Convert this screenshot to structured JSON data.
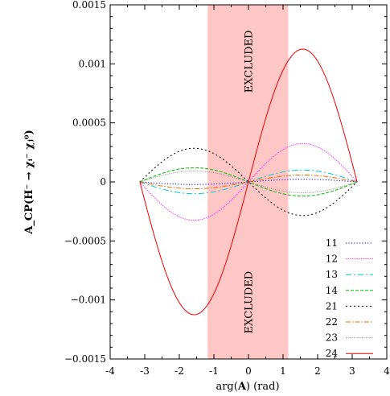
{
  "chart_data": {
    "type": "line",
    "title": "",
    "xlabel_prefix": "arg(",
    "xlabel_bold": "A",
    "xlabel_suffix": ") (rad)",
    "ylabel": "A_CP(H⁻ → χᵢ⁻ χⱼ⁰)",
    "xlim": [
      -4,
      4
    ],
    "ylim": [
      -0.0015,
      0.0015
    ],
    "xticks": [
      -4,
      -3,
      -2,
      -1,
      0,
      1,
      2,
      3,
      4
    ],
    "xtick_labels": [
      "-4",
      "-3",
      "-2",
      "-1",
      "0",
      "1",
      "2",
      "3",
      "4"
    ],
    "yticks": [
      -0.0015,
      -0.001,
      -0.0005,
      0,
      0.0005,
      0.001,
      0.0015
    ],
    "ytick_labels": [
      "−0.0015",
      "−0.001",
      "−0.0005",
      "0",
      "0.0005",
      "0.001",
      "0.0015"
    ],
    "grid": false,
    "legend_position": "bottom-right",
    "excluded_region": {
      "xmin": -1.18,
      "xmax": 1.15,
      "color": "#ffc6c6",
      "label_top": "EXCLUDED",
      "label_bottom": "EXCLUDED"
    },
    "x_range": [
      -3.14159,
      3.14159
    ],
    "series": [
      {
        "name": "11",
        "amplitude": 2.2e-05,
        "color": "#0000dd",
        "dash": "1.2,2.2"
      },
      {
        "name": "12",
        "amplitude": 0.000325,
        "color": "#ff33ff",
        "dash": "1.5,1.2"
      },
      {
        "name": "13",
        "amplitude": 0.0001,
        "color": "#00cccc",
        "dash": "7,3,2,3"
      },
      {
        "name": "14",
        "amplitude": -0.00012,
        "color": "#00bb00",
        "dash": "4,2"
      },
      {
        "name": "21",
        "amplitude": -0.000285,
        "color": "#000000",
        "dash": "2,3"
      },
      {
        "name": "22",
        "amplitude": 5.8e-05,
        "color": "#ff6600",
        "dash": "6,2,1.5,2"
      },
      {
        "name": "23",
        "amplitude": -9.2e-05,
        "color": "#888888",
        "dash": "1,1.5"
      },
      {
        "name": "24",
        "amplitude": 0.001125,
        "color": "#ee0000",
        "dash": ""
      }
    ]
  }
}
